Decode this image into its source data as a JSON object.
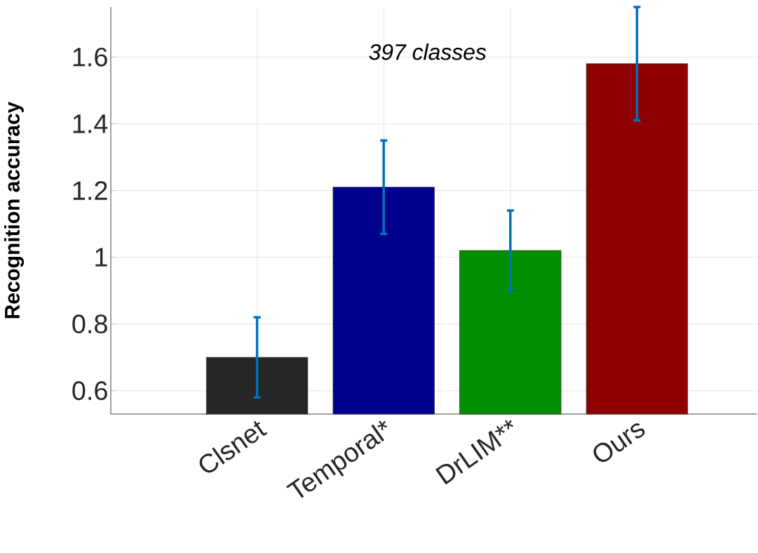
{
  "chart_data": {
    "type": "bar",
    "categories": [
      "Clsnet",
      "Temporal*",
      "DrLIM**",
      "Ours"
    ],
    "values": [
      0.7,
      1.21,
      1.02,
      1.58
    ],
    "colors": [
      "#262626",
      "#00008f",
      "#008f00",
      "#8f0000"
    ],
    "errors": [
      [
        0.58,
        0.82
      ],
      [
        1.07,
        1.35
      ],
      [
        0.9,
        1.14
      ],
      [
        1.41,
        1.75
      ]
    ],
    "ylabel": "Recognition accuracy",
    "annotations": [
      "397 classes"
    ],
    "ylim": [
      0.53,
      1.75
    ],
    "yticks": [
      0.6,
      0.8,
      1,
      1.2,
      1.4,
      1.6
    ],
    "grid": true
  }
}
